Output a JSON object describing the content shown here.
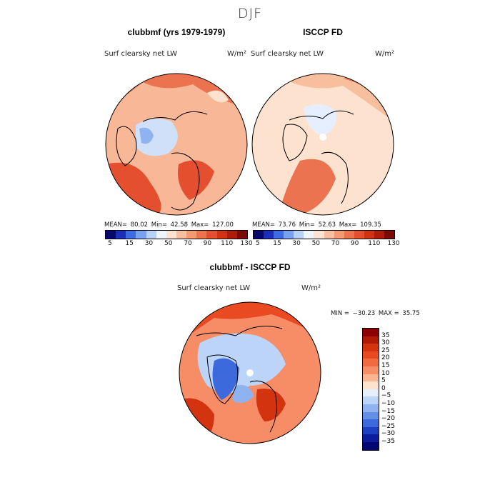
{
  "season_title": "DJF",
  "chart_data": [
    {
      "type": "heatmap",
      "title": "clubbmf (yrs 1979-1979)",
      "variable": "Surf clearsky net LW",
      "units": "W/m²",
      "stats": {
        "mean_label": "MEAN=",
        "mean": "80.02",
        "min_label": "Min=",
        "min": "42.58",
        "max_label": "Max=",
        "max": "127.00"
      },
      "colorbar_labels": [
        "5",
        "15",
        "30",
        "50",
        "70",
        "90",
        "110",
        "130"
      ]
    },
    {
      "type": "heatmap",
      "title": "ISCCP FD",
      "variable": "Surf clearsky net LW",
      "units": "W/m²",
      "stats": {
        "mean_label": "MEAN=",
        "mean": "73.76",
        "min_label": "Min=",
        "min": "52.63",
        "max_label": "Max=",
        "max": "109.35"
      },
      "colorbar_labels": [
        "5",
        "15",
        "30",
        "50",
        "70",
        "90",
        "110",
        "130"
      ]
    },
    {
      "type": "heatmap",
      "title": "clubbmf - ISCCP FD",
      "variable": "Surf clearsky net LW",
      "units": "W/m²",
      "stats": {
        "min_label": "MIN =",
        "min": "−30.23",
        "max_label": "MAX =",
        "max": "35.75"
      },
      "colorbar_labels": [
        "35",
        "30",
        "25",
        "20",
        "15",
        "10",
        "5",
        "0",
        "−5",
        "−10",
        "−15",
        "−20",
        "−25",
        "−30",
        "−35"
      ]
    }
  ],
  "colors": {
    "abs_palette": [
      "#08086b",
      "#1b2fb8",
      "#3d6be0",
      "#78a2ee",
      "#b8d2f6",
      "#eef4fc",
      "#fce2cf",
      "#f8bf9e",
      "#f39a73",
      "#ec7350",
      "#e4502f",
      "#cf3313",
      "#ac1c08",
      "#7a0a03"
    ],
    "diff_palette": [
      "#8b0000",
      "#b01a06",
      "#d4330f",
      "#ea4a22",
      "#f26a42",
      "#f68d66",
      "#fab593",
      "#fde3cf",
      "#e6efff",
      "#bcd4f8",
      "#8fb3f0",
      "#6390e6",
      "#3c69dc",
      "#1c3fc4",
      "#0b1c9c",
      "#020670"
    ],
    "ocean_low": "#fbdac4",
    "warm": "#f29070",
    "hot": "#e8552c",
    "cool": "#cfe0f8",
    "cold": "#5d82de"
  }
}
